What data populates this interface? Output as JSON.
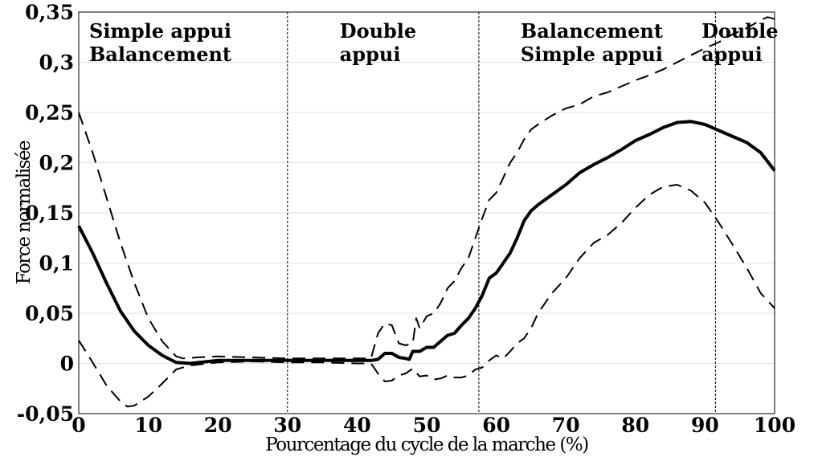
{
  "chart_data": {
    "type": "line",
    "xlabel": "Pourcentage du cycle de la marche (%)",
    "ylabel": "Force normalisée",
    "xlim": [
      0,
      100
    ],
    "ylim": [
      -0.05,
      0.35
    ],
    "x_ticks": [
      0,
      10,
      20,
      30,
      40,
      50,
      60,
      70,
      80,
      90,
      100
    ],
    "x_tick_labels": [
      "0",
      "10",
      "20",
      "30",
      "40",
      "50",
      "60",
      "70",
      "80",
      "90",
      "100"
    ],
    "y_ticks": [
      -0.05,
      0,
      0.05,
      0.1,
      0.15,
      0.2,
      0.25,
      0.3,
      0.35
    ],
    "y_tick_labels": [
      "-0,05",
      "0",
      "0,05",
      "0,1",
      "0,15",
      "0,2",
      "0,25",
      "0,3",
      "0,35"
    ],
    "grid": true,
    "phase_dividers": [
      30,
      57.5,
      91.5,
      100
    ],
    "phase_labels": [
      {
        "x": 1.5,
        "lines": [
          "Simple appui",
          "Balancement"
        ]
      },
      {
        "x": 37.5,
        "lines": [
          "Double",
          "appui"
        ]
      },
      {
        "x": 63.5,
        "lines": [
          "Balancement",
          "Simple appui"
        ]
      },
      {
        "x": 89.5,
        "lines": [
          "Double",
          "appui"
        ]
      }
    ],
    "series": [
      {
        "style": "solid",
        "x": [
          0,
          2,
          4,
          6,
          8,
          10,
          12,
          14,
          16,
          20,
          25,
          30,
          35,
          40,
          42,
          43,
          44,
          45,
          46,
          47,
          47.5,
          48,
          49,
          50,
          51,
          52,
          53,
          54,
          55,
          56,
          57,
          58,
          59,
          60,
          61,
          62,
          63,
          64,
          65,
          66,
          68,
          70,
          72,
          74,
          76,
          78,
          80,
          82,
          84,
          86,
          88,
          90,
          92,
          94,
          96,
          98,
          100
        ],
        "y": [
          0.137,
          0.11,
          0.08,
          0.052,
          0.032,
          0.018,
          0.008,
          0.001,
          0.0,
          0.003,
          0.003,
          0.003,
          0.003,
          0.003,
          0.003,
          0.004,
          0.01,
          0.01,
          0.006,
          0.005,
          0.004,
          0.012,
          0.012,
          0.016,
          0.016,
          0.022,
          0.028,
          0.03,
          0.038,
          0.045,
          0.055,
          0.068,
          0.085,
          0.09,
          0.1,
          0.11,
          0.125,
          0.142,
          0.152,
          0.158,
          0.168,
          0.178,
          0.19,
          0.198,
          0.205,
          0.213,
          0.222,
          0.228,
          0.235,
          0.24,
          0.241,
          0.238,
          0.232,
          0.226,
          0.22,
          0.21,
          0.192
        ]
      },
      {
        "style": "dashed",
        "x": [
          0,
          2,
          4,
          6,
          8,
          10,
          12,
          14,
          15,
          17,
          20,
          25,
          30,
          35,
          40,
          42,
          43,
          44,
          45,
          46,
          47,
          48,
          48.5,
          49,
          50,
          51,
          52,
          53,
          54,
          55,
          56,
          57,
          58,
          59,
          60,
          61,
          62,
          63,
          64,
          65,
          66,
          68,
          70,
          72,
          74,
          76,
          78,
          80,
          82,
          84,
          86,
          88,
          90,
          92,
          94,
          96,
          98,
          99,
          100
        ],
        "y": [
          0.25,
          0.21,
          0.165,
          0.12,
          0.08,
          0.045,
          0.022,
          0.007,
          0.005,
          0.006,
          0.007,
          0.006,
          0.005,
          0.005,
          0.005,
          0.005,
          0.03,
          0.04,
          0.038,
          0.02,
          0.018,
          0.02,
          0.045,
          0.035,
          0.047,
          0.05,
          0.06,
          0.075,
          0.082,
          0.095,
          0.105,
          0.125,
          0.145,
          0.163,
          0.17,
          0.185,
          0.2,
          0.21,
          0.223,
          0.233,
          0.238,
          0.247,
          0.254,
          0.258,
          0.266,
          0.27,
          0.276,
          0.282,
          0.287,
          0.293,
          0.3,
          0.307,
          0.314,
          0.32,
          0.328,
          0.334,
          0.342,
          0.345,
          0.343
        ]
      },
      {
        "style": "dashed",
        "x": [
          0,
          2,
          4,
          6,
          7,
          8,
          10,
          12,
          14,
          16,
          20,
          25,
          30,
          35,
          40,
          42,
          43,
          44,
          45,
          46,
          47,
          48,
          49,
          50,
          51,
          52,
          53,
          54,
          55,
          56,
          57,
          58,
          59,
          60,
          61,
          62,
          63,
          64,
          65,
          66,
          68,
          70,
          72,
          74,
          76,
          78,
          80,
          82,
          84,
          86,
          88,
          90,
          92,
          94,
          96,
          98,
          100
        ],
        "y": [
          0.023,
          0.001,
          -0.022,
          -0.038,
          -0.043,
          -0.042,
          -0.033,
          -0.02,
          -0.006,
          -0.002,
          0.001,
          0.002,
          0.001,
          0.001,
          0.0,
          0.0,
          -0.01,
          -0.018,
          -0.017,
          -0.012,
          -0.01,
          -0.005,
          -0.013,
          -0.012,
          -0.016,
          -0.015,
          -0.012,
          -0.014,
          -0.014,
          -0.012,
          -0.006,
          -0.004,
          0.003,
          0.008,
          0.005,
          0.012,
          0.02,
          0.025,
          0.035,
          0.05,
          0.07,
          0.085,
          0.105,
          0.12,
          0.128,
          0.14,
          0.155,
          0.168,
          0.176,
          0.178,
          0.172,
          0.16,
          0.14,
          0.118,
          0.095,
          0.07,
          0.055
        ]
      }
    ]
  }
}
